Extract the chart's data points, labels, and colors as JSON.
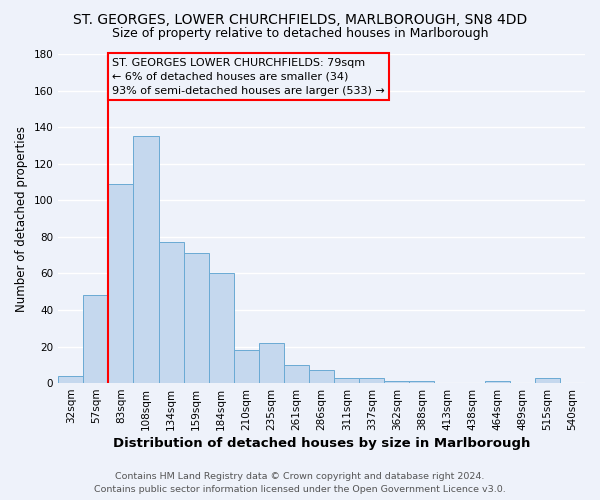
{
  "title1": "ST. GEORGES, LOWER CHURCHFIELDS, MARLBOROUGH, SN8 4DD",
  "title2": "Size of property relative to detached houses in Marlborough",
  "xlabel": "Distribution of detached houses by size in Marlborough",
  "ylabel": "Number of detached properties",
  "bin_labels": [
    "32sqm",
    "57sqm",
    "83sqm",
    "108sqm",
    "134sqm",
    "159sqm",
    "184sqm",
    "210sqm",
    "235sqm",
    "261sqm",
    "286sqm",
    "311sqm",
    "337sqm",
    "362sqm",
    "388sqm",
    "413sqm",
    "438sqm",
    "464sqm",
    "489sqm",
    "515sqm",
    "540sqm"
  ],
  "bar_heights": [
    4,
    48,
    109,
    135,
    77,
    71,
    60,
    18,
    22,
    10,
    7,
    3,
    3,
    1,
    1,
    0,
    0,
    1,
    0,
    3,
    0
  ],
  "bar_color": "#c5d8ee",
  "bar_edge_color": "#6aaad4",
  "ylim": [
    0,
    180
  ],
  "yticks": [
    0,
    20,
    40,
    60,
    80,
    100,
    120,
    140,
    160,
    180
  ],
  "red_line_x": 1.5,
  "annotation_title": "ST. GEORGES LOWER CHURCHFIELDS: 79sqm",
  "annotation_line1": "← 6% of detached houses are smaller (34)",
  "annotation_line2": "93% of semi-detached houses are larger (533) →",
  "footer1": "Contains HM Land Registry data © Crown copyright and database right 2024.",
  "footer2": "Contains public sector information licensed under the Open Government Licence v3.0.",
  "background_color": "#eef2fa",
  "grid_color": "#ffffff",
  "title1_fontsize": 10,
  "title2_fontsize": 9,
  "xlabel_fontsize": 9.5,
  "ylabel_fontsize": 8.5,
  "tick_fontsize": 7.5,
  "footer_fontsize": 6.8,
  "annot_fontsize": 8.0
}
